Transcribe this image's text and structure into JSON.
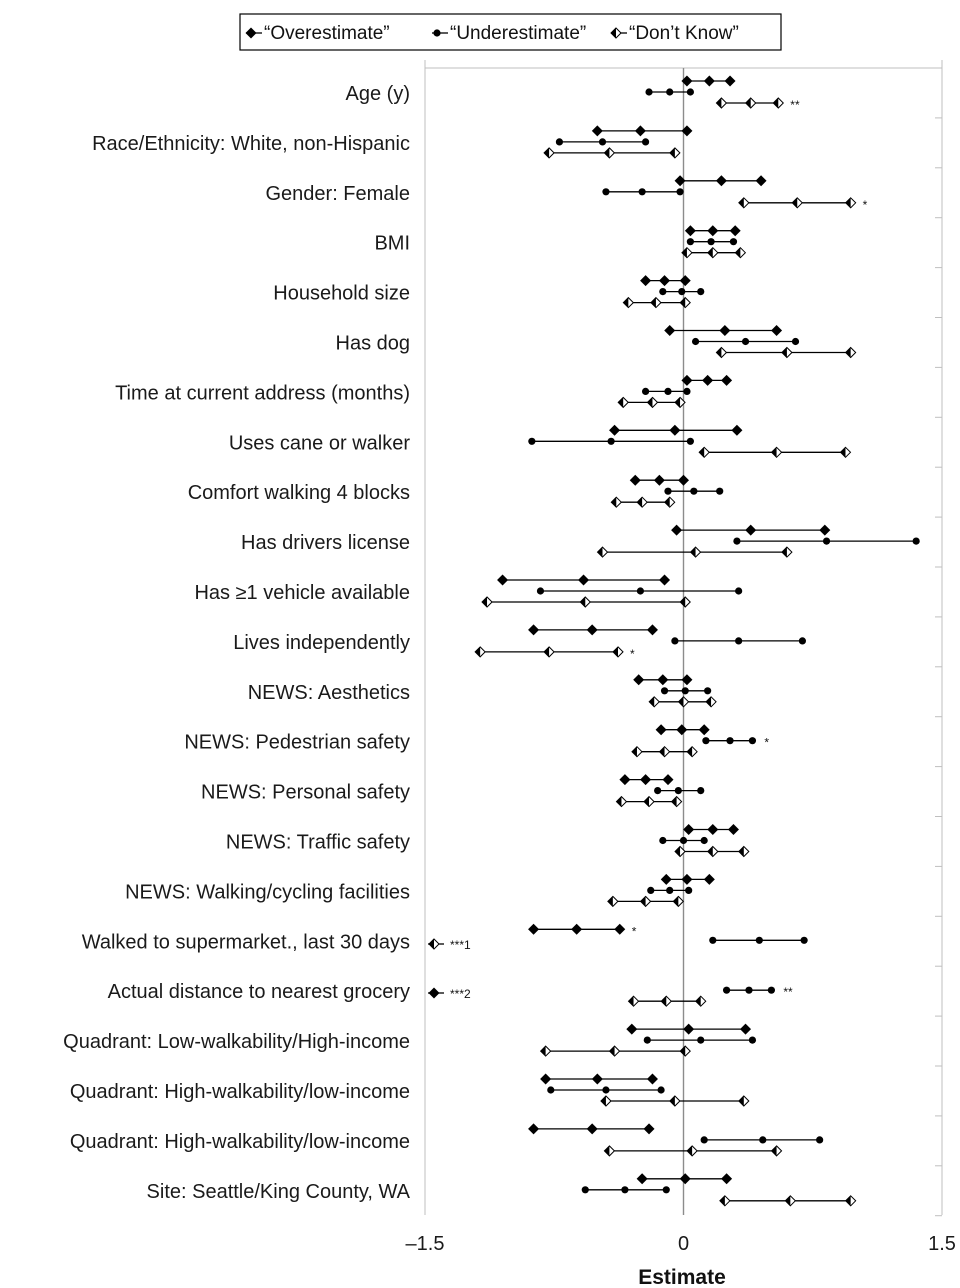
{
  "chart_data": {
    "type": "forest",
    "xlabel": "Estimate",
    "xlim": [
      -1.5,
      1.5
    ],
    "xticks": [
      -1.5,
      0,
      1.5
    ],
    "xtick_labels": [
      "–1.5",
      "0",
      "1.5"
    ],
    "reference_line": 0,
    "legend": {
      "placement": "top-center",
      "entries": [
        {
          "series": "overestimate",
          "label": "“Overestimate”",
          "marker": "diamond"
        },
        {
          "series": "underestimate",
          "label": "“Underestimate”",
          "marker": "circle"
        },
        {
          "series": "dont_know",
          "label": "“Don’t Know”",
          "marker": "half-diamond"
        }
      ]
    },
    "marker_legend": [
      {
        "marker": "half-diamond",
        "label": "***1"
      },
      {
        "marker": "diamond",
        "label": "***2"
      }
    ],
    "series_order": [
      "overestimate",
      "underestimate",
      "dont_know"
    ],
    "categories": [
      {
        "label": "Age (y)",
        "rows": [
          {
            "series": "overestimate",
            "lo": 0.02,
            "est": 0.15,
            "hi": 0.27
          },
          {
            "series": "underestimate",
            "lo": -0.2,
            "est": -0.08,
            "hi": 0.04
          },
          {
            "series": "dont_know",
            "lo": 0.22,
            "est": 0.39,
            "hi": 0.55,
            "sig": "**"
          }
        ]
      },
      {
        "label": "Race/Ethnicity: White, non-Hispanic",
        "rows": [
          {
            "series": "overestimate",
            "lo": -0.5,
            "est": -0.25,
            "hi": 0.02
          },
          {
            "series": "underestimate",
            "lo": -0.72,
            "est": -0.47,
            "hi": -0.22
          },
          {
            "series": "dont_know",
            "lo": -0.78,
            "est": -0.43,
            "hi": -0.05
          }
        ]
      },
      {
        "label": "Gender: Female",
        "rows": [
          {
            "series": "overestimate",
            "lo": -0.02,
            "est": 0.22,
            "hi": 0.45
          },
          {
            "series": "underestimate",
            "lo": -0.45,
            "est": -0.24,
            "hi": -0.02
          },
          {
            "series": "dont_know",
            "lo": 0.35,
            "est": 0.66,
            "hi": 0.97,
            "sig": "*"
          }
        ]
      },
      {
        "label": "BMI",
        "rows": [
          {
            "series": "overestimate",
            "lo": 0.04,
            "est": 0.17,
            "hi": 0.3
          },
          {
            "series": "underestimate",
            "lo": 0.04,
            "est": 0.16,
            "hi": 0.29
          },
          {
            "series": "dont_know",
            "lo": 0.02,
            "est": 0.17,
            "hi": 0.33
          }
        ]
      },
      {
        "label": "Household size",
        "rows": [
          {
            "series": "overestimate",
            "lo": -0.22,
            "est": -0.11,
            "hi": 0.01
          },
          {
            "series": "underestimate",
            "lo": -0.12,
            "est": -0.01,
            "hi": 0.1
          },
          {
            "series": "dont_know",
            "lo": -0.32,
            "est": -0.16,
            "hi": 0.01
          }
        ]
      },
      {
        "label": "Has dog",
        "rows": [
          {
            "series": "overestimate",
            "lo": -0.08,
            "est": 0.24,
            "hi": 0.54
          },
          {
            "series": "underestimate",
            "lo": 0.07,
            "est": 0.36,
            "hi": 0.65
          },
          {
            "series": "dont_know",
            "lo": 0.22,
            "est": 0.6,
            "hi": 0.97
          }
        ]
      },
      {
        "label": "Time at current address (months)",
        "rows": [
          {
            "series": "overestimate",
            "lo": 0.02,
            "est": 0.14,
            "hi": 0.25
          },
          {
            "series": "underestimate",
            "lo": -0.22,
            "est": -0.09,
            "hi": 0.02
          },
          {
            "series": "dont_know",
            "lo": -0.35,
            "est": -0.18,
            "hi": -0.02
          }
        ]
      },
      {
        "label": "Uses cane or walker",
        "rows": [
          {
            "series": "overestimate",
            "lo": -0.4,
            "est": -0.05,
            "hi": 0.31
          },
          {
            "series": "underestimate",
            "lo": -0.88,
            "est": -0.42,
            "hi": 0.04
          },
          {
            "series": "dont_know",
            "lo": 0.12,
            "est": 0.54,
            "hi": 0.94
          }
        ]
      },
      {
        "label": "Comfort walking 4 blocks",
        "rows": [
          {
            "series": "overestimate",
            "lo": -0.28,
            "est": -0.14,
            "hi": 0.0
          },
          {
            "series": "underestimate",
            "lo": -0.09,
            "est": 0.06,
            "hi": 0.21
          },
          {
            "series": "dont_know",
            "lo": -0.39,
            "est": -0.24,
            "hi": -0.08
          }
        ]
      },
      {
        "label": "Has drivers license",
        "rows": [
          {
            "series": "overestimate",
            "lo": -0.04,
            "est": 0.39,
            "hi": 0.82
          },
          {
            "series": "underestimate",
            "lo": 0.31,
            "est": 0.83,
            "hi": 1.35
          },
          {
            "series": "dont_know",
            "lo": -0.47,
            "est": 0.07,
            "hi": 0.6
          }
        ]
      },
      {
        "label": "Has ≥1 vehicle available",
        "rows": [
          {
            "series": "overestimate",
            "lo": -1.05,
            "est": -0.58,
            "hi": -0.11
          },
          {
            "series": "underestimate",
            "lo": -0.83,
            "est": -0.25,
            "hi": 0.32
          },
          {
            "series": "dont_know",
            "lo": -1.14,
            "est": -0.57,
            "hi": 0.01
          }
        ]
      },
      {
        "label": "Lives independently",
        "rows": [
          {
            "series": "overestimate",
            "lo": -0.87,
            "est": -0.53,
            "hi": -0.18
          },
          {
            "series": "underestimate",
            "lo": -0.05,
            "est": 0.32,
            "hi": 0.69
          },
          {
            "series": "dont_know",
            "lo": -1.18,
            "est": -0.78,
            "hi": -0.38,
            "sig": "*"
          }
        ]
      },
      {
        "label": "NEWS: Aesthetics",
        "rows": [
          {
            "series": "overestimate",
            "lo": -0.26,
            "est": -0.12,
            "hi": 0.02
          },
          {
            "series": "underestimate",
            "lo": -0.11,
            "est": 0.01,
            "hi": 0.14
          },
          {
            "series": "dont_know",
            "lo": -0.17,
            "est": 0.0,
            "hi": 0.16
          }
        ]
      },
      {
        "label": "NEWS: Pedestrian safety",
        "rows": [
          {
            "series": "overestimate",
            "lo": -0.13,
            "est": -0.01,
            "hi": 0.12
          },
          {
            "series": "underestimate",
            "lo": 0.13,
            "est": 0.27,
            "hi": 0.4,
            "sig": "*"
          },
          {
            "series": "dont_know",
            "lo": -0.27,
            "est": -0.11,
            "hi": 0.05
          }
        ]
      },
      {
        "label": "NEWS: Personal safety",
        "rows": [
          {
            "series": "overestimate",
            "lo": -0.34,
            "est": -0.22,
            "hi": -0.09
          },
          {
            "series": "underestimate",
            "lo": -0.15,
            "est": -0.03,
            "hi": 0.1
          },
          {
            "series": "dont_know",
            "lo": -0.36,
            "est": -0.2,
            "hi": -0.04
          }
        ]
      },
      {
        "label": "NEWS: Traffic safety",
        "rows": [
          {
            "series": "overestimate",
            "lo": 0.03,
            "est": 0.17,
            "hi": 0.29
          },
          {
            "series": "underestimate",
            "lo": -0.12,
            "est": 0.0,
            "hi": 0.12
          },
          {
            "series": "dont_know",
            "lo": -0.02,
            "est": 0.17,
            "hi": 0.35
          }
        ]
      },
      {
        "label": "NEWS: Walking/cycling facilities",
        "rows": [
          {
            "series": "overestimate",
            "lo": -0.1,
            "est": 0.02,
            "hi": 0.15
          },
          {
            "series": "underestimate",
            "lo": -0.19,
            "est": -0.08,
            "hi": 0.03
          },
          {
            "series": "dont_know",
            "lo": -0.41,
            "est": -0.22,
            "hi": -0.03
          }
        ]
      },
      {
        "label": "Walked to supermarket., last 30 days",
        "rows": [
          {
            "series": "overestimate",
            "lo": -0.87,
            "est": -0.62,
            "hi": -0.37,
            "sig": "*"
          },
          {
            "series": "underestimate",
            "lo": 0.17,
            "est": 0.44,
            "hi": 0.7
          },
          {
            "series": "dont_know",
            "offscale": true
          }
        ]
      },
      {
        "label": "Actual distance to nearest grocery",
        "rows": [
          {
            "series": "overestimate",
            "offscale": true
          },
          {
            "series": "underestimate",
            "lo": 0.25,
            "est": 0.38,
            "hi": 0.51,
            "sig": "**"
          },
          {
            "series": "dont_know",
            "lo": -0.29,
            "est": -0.1,
            "hi": 0.1
          }
        ]
      },
      {
        "label": "Quadrant: Low-walkability/High-income",
        "rows": [
          {
            "series": "overestimate",
            "lo": -0.3,
            "est": 0.03,
            "hi": 0.36
          },
          {
            "series": "underestimate",
            "lo": -0.21,
            "est": 0.1,
            "hi": 0.4
          },
          {
            "series": "dont_know",
            "lo": -0.8,
            "est": -0.4,
            "hi": 0.01
          }
        ]
      },
      {
        "label": "Quadrant: High-walkability/low-income",
        "rows": [
          {
            "series": "overestimate",
            "lo": -0.8,
            "est": -0.5,
            "hi": -0.18
          },
          {
            "series": "underestimate",
            "lo": -0.77,
            "est": -0.45,
            "hi": -0.13
          },
          {
            "series": "dont_know",
            "lo": -0.45,
            "est": -0.05,
            "hi": 0.35
          }
        ]
      },
      {
        "label": "Quadrant: High-walkability/low-income",
        "rows": [
          {
            "series": "overestimate",
            "lo": -0.87,
            "est": -0.53,
            "hi": -0.2
          },
          {
            "series": "underestimate",
            "lo": 0.12,
            "est": 0.46,
            "hi": 0.79
          },
          {
            "series": "dont_know",
            "lo": -0.43,
            "est": 0.05,
            "hi": 0.54
          }
        ]
      },
      {
        "label": "Site: Seattle/King County, WA",
        "rows": [
          {
            "series": "overestimate",
            "lo": -0.24,
            "est": 0.01,
            "hi": 0.25
          },
          {
            "series": "underestimate",
            "lo": -0.57,
            "est": -0.34,
            "hi": -0.1
          },
          {
            "series": "dont_know",
            "lo": 0.24,
            "est": 0.62,
            "hi": 0.97
          }
        ]
      }
    ]
  }
}
